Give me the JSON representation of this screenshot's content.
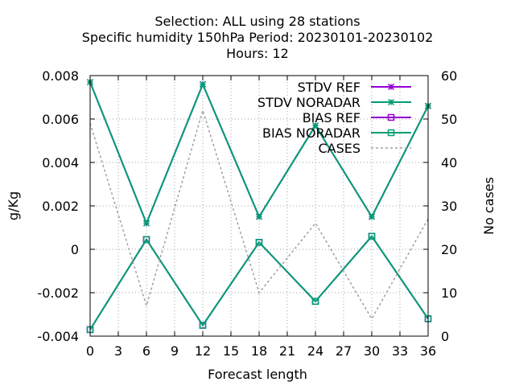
{
  "chart_data": {
    "type": "line",
    "title_lines": [
      "Selection: ALL using    28 stations",
      "Specific humidity 150hPa   Period: 20230101-20230102",
      "Hours:  12"
    ],
    "xlabel": "Forecast length",
    "ylabel": "g/Kg",
    "y2label": "No cases",
    "x": [
      0,
      6,
      12,
      18,
      24,
      30,
      36
    ],
    "xlim": [
      0,
      36
    ],
    "xticks": [
      0,
      3,
      6,
      9,
      12,
      15,
      18,
      21,
      24,
      27,
      30,
      33,
      36
    ],
    "ylim": [
      -0.004,
      0.008
    ],
    "yticks": [
      "-0.004",
      "-0.002",
      "0",
      "0.002",
      "0.004",
      "0.006",
      "0.008"
    ],
    "y2lim": [
      0,
      60
    ],
    "y2ticks": [
      "0",
      "10",
      "20",
      "30",
      "40",
      "50",
      "60"
    ],
    "grid": true,
    "legend_position": "top-right",
    "series": [
      {
        "name": "STDV REF",
        "axis": "y1",
        "marker": "star",
        "color": "#9400d3",
        "dash": false,
        "values": [
          0.0077,
          0.0012,
          0.0076,
          0.0015,
          0.0057,
          0.0015,
          0.0066
        ]
      },
      {
        "name": "STDV NORADAR",
        "axis": "y1",
        "marker": "star",
        "color": "#009e73",
        "dash": false,
        "values": [
          0.0077,
          0.0012,
          0.0076,
          0.0015,
          0.0057,
          0.0015,
          0.0066
        ]
      },
      {
        "name": "BIAS REF",
        "axis": "y1",
        "marker": "square",
        "color": "#9400d3",
        "dash": false,
        "values": [
          -0.0037,
          0.00045,
          -0.0035,
          0.00032,
          -0.0024,
          0.0006,
          -0.0032
        ]
      },
      {
        "name": "BIAS NORADAR",
        "axis": "y1",
        "marker": "square",
        "color": "#009e73",
        "dash": false,
        "values": [
          -0.0037,
          0.00045,
          -0.0035,
          0.00032,
          -0.0024,
          0.0006,
          -0.0032
        ]
      },
      {
        "name": "CASES",
        "axis": "y2",
        "marker": "none",
        "color": "#a0a0a0",
        "dash": true,
        "values": [
          49,
          7,
          52,
          10,
          26,
          4,
          27
        ]
      }
    ]
  }
}
